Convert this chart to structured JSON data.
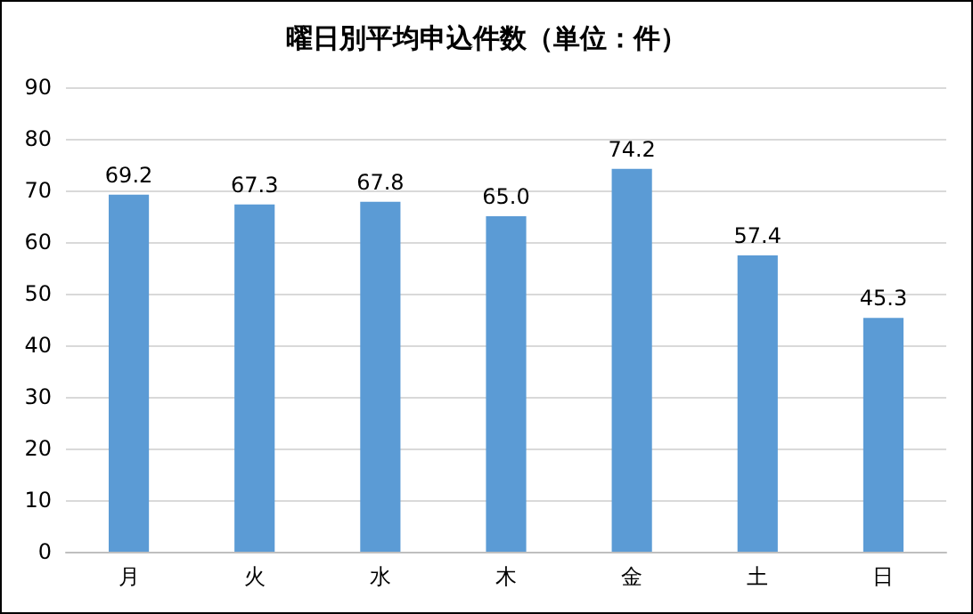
{
  "chart_data": {
    "type": "bar",
    "title": "曜日別平均申込件数（単位：件）",
    "categories": [
      "月",
      "火",
      "水",
      "木",
      "金",
      "土",
      "日"
    ],
    "values": [
      69.2,
      67.3,
      67.8,
      65.0,
      74.2,
      57.4,
      45.3
    ],
    "value_labels": [
      "69.2",
      "67.3",
      "67.8",
      "65.0",
      "74.2",
      "57.4",
      "45.3"
    ],
    "color": "#5b9bd5",
    "ylim": [
      0,
      90
    ],
    "yticks": [
      0,
      10,
      20,
      30,
      40,
      50,
      60,
      70,
      80,
      90
    ],
    "grid": "y"
  }
}
